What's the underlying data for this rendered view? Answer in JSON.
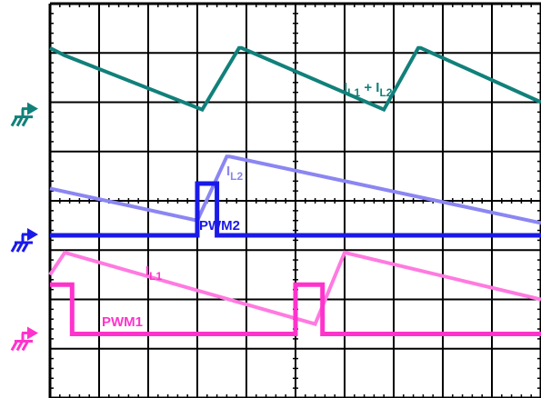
{
  "chart_data": {
    "type": "line",
    "title": "",
    "grid": true,
    "divisions": {
      "x": 10,
      "y": 8
    },
    "x": [
      0,
      0.45,
      0.9,
      1.35,
      1.8,
      2.25,
      2.7,
      3.15,
      3.6,
      4.05,
      4.5,
      4.95,
      5.4,
      5.85,
      6.3,
      6.75,
      7.2,
      7.65,
      8.1,
      8.55,
      9.0,
      9.45,
      9.9,
      10.0
    ],
    "xlim": [
      0,
      10
    ],
    "ylim": [
      0,
      8
    ],
    "series": [
      {
        "name": "IL1 + IL2",
        "color": "#11807a",
        "points": [
          [
            0.0,
            7.1
          ],
          [
            0.3,
            6.95
          ],
          [
            3.1,
            5.85
          ],
          [
            3.85,
            7.1
          ],
          [
            3.9,
            7.1
          ],
          [
            6.8,
            5.85
          ],
          [
            7.5,
            7.1
          ],
          [
            7.55,
            7.1
          ],
          [
            10.0,
            6.0
          ]
        ]
      },
      {
        "name": "IL2",
        "color": "#8b86f2",
        "points": [
          [
            0.0,
            4.25
          ],
          [
            3.0,
            3.6
          ],
          [
            3.6,
            4.9
          ],
          [
            3.65,
            4.9
          ],
          [
            10.0,
            3.55
          ]
        ]
      },
      {
        "name": "PWM2",
        "color": "#1a1ae8",
        "points": [
          [
            0.0,
            3.3
          ],
          [
            3.0,
            3.3
          ],
          [
            3.0,
            4.35
          ],
          [
            3.4,
            4.35
          ],
          [
            3.4,
            3.3
          ],
          [
            10.0,
            3.3
          ]
        ]
      },
      {
        "name": "IL1",
        "color": "#ff7ae0",
        "points": [
          [
            0.0,
            2.5
          ],
          [
            0.3,
            2.95
          ],
          [
            5.4,
            1.5
          ],
          [
            6.0,
            2.95
          ],
          [
            10.0,
            2.0
          ]
        ]
      },
      {
        "name": "PWM1",
        "color": "#ff33cc",
        "points": [
          [
            0.0,
            2.3
          ],
          [
            0.45,
            2.3
          ],
          [
            0.45,
            1.3
          ],
          [
            5.0,
            1.3
          ],
          [
            5.0,
            2.3
          ],
          [
            5.55,
            2.3
          ],
          [
            5.55,
            1.3
          ],
          [
            10.0,
            1.3
          ]
        ]
      }
    ]
  },
  "labels": {
    "sum": {
      "main": "I",
      "sub": "L1",
      "mid": " + I",
      "sub2": "L2"
    },
    "il2": {
      "main": "I",
      "sub": "L2"
    },
    "il1": {
      "main": "I",
      "sub": "L1"
    },
    "pwm2": "PWM2",
    "pwm1": "PWM1"
  },
  "ground_markers": [
    {
      "name": "channel-1-ground-icon",
      "color": "#11807a"
    },
    {
      "name": "channel-2-ground-icon",
      "color": "#1a1ae8"
    },
    {
      "name": "channel-3-ground-icon",
      "color": "#ff33cc"
    }
  ]
}
